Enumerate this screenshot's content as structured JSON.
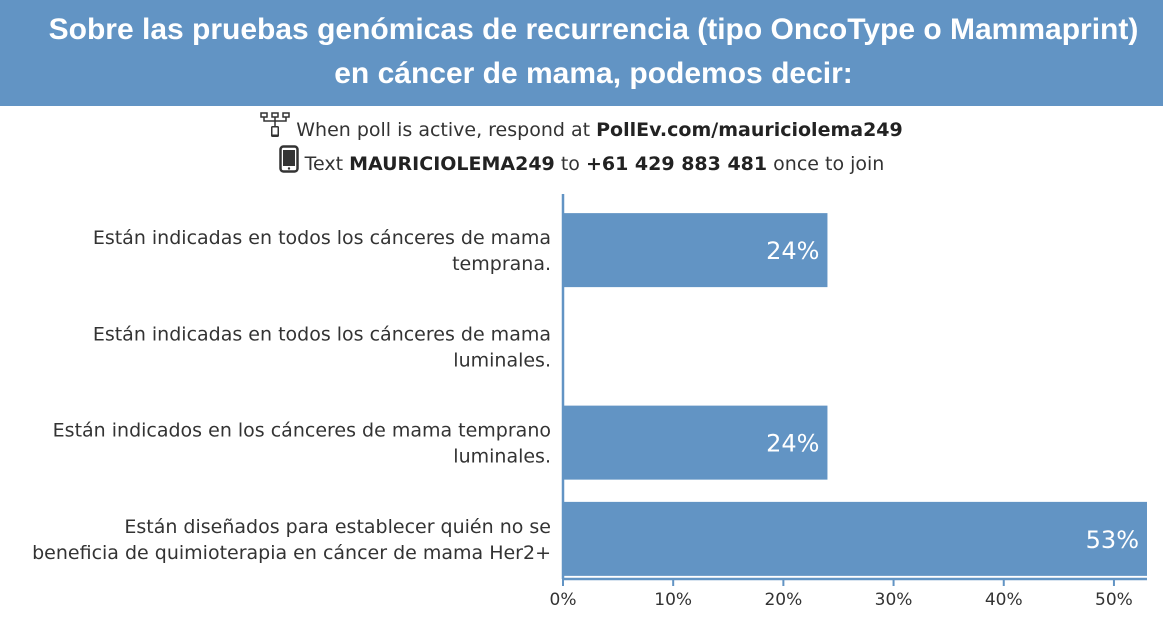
{
  "header": {
    "title": "Sobre las pruebas genómicas de recurrencia (tipo OncoType o Mammaprint) en cáncer de mama, podemos decir:",
    "background_color": "#6294c4"
  },
  "instructions": {
    "web_prefix": "When poll is active, respond at ",
    "web_url": "PollEv.com/mauriciolema249",
    "sms_prefix": "Text ",
    "sms_code": "MAURICIOLEMA249",
    "sms_mid": " to ",
    "sms_number": "+61 429 883 481",
    "sms_suffix": " once to join",
    "web_icon": "network-icon",
    "sms_icon": "phone-icon"
  },
  "chart_data": {
    "type": "bar",
    "orientation": "horizontal",
    "categories": [
      "Están indicadas en todos los cánceres de mama temprana.",
      "Están indicadas en todos los cánceres de mama luminales.",
      "Están indicados en los cánceres de mama temprano luminales.",
      "Están diseñados para establecer quién no se beneficia de quimioterapia en cáncer de mama Her2+"
    ],
    "category_lines": [
      [
        "Están indicadas en todos los cánceres de mama",
        "temprana."
      ],
      [
        "Están indicadas en todos los cánceres de mama",
        "luminales."
      ],
      [
        "Están indicados en los cánceres de mama temprano",
        "luminales."
      ],
      [
        "Están diseñados para establecer quién no se",
        "beneficia de quimioterapia en cáncer de mama Her2+"
      ]
    ],
    "values": [
      24,
      0,
      24,
      53
    ],
    "value_labels": [
      "24%",
      "",
      "24%",
      "53%"
    ],
    "xlim": [
      0,
      53
    ],
    "xticks": [
      0,
      10,
      20,
      30,
      40,
      50
    ],
    "xtick_labels": [
      "0%",
      "10%",
      "20%",
      "30%",
      "40%",
      "50%"
    ],
    "bar_color": "#6294c4",
    "axis_color": "#6294c4",
    "grid": false
  }
}
